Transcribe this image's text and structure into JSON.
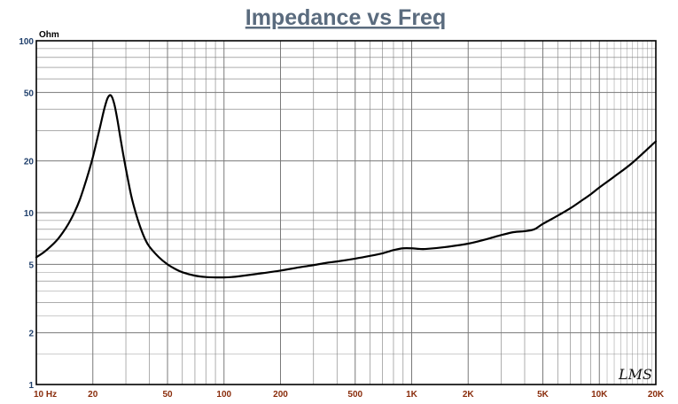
{
  "chart_data": {
    "type": "line",
    "title": "Impedance vs Freq",
    "ylabel": "Ohm",
    "xscale": "log",
    "yscale": "log",
    "xlim": [
      10,
      20000
    ],
    "ylim": [
      1,
      100
    ],
    "grid": true,
    "x_tick_labels": [
      {
        "value": 10,
        "label": "10  Hz"
      },
      {
        "value": 20,
        "label": "20"
      },
      {
        "value": 50,
        "label": "50"
      },
      {
        "value": 100,
        "label": "100"
      },
      {
        "value": 200,
        "label": "200"
      },
      {
        "value": 500,
        "label": "500"
      },
      {
        "value": 1000,
        "label": "1K"
      },
      {
        "value": 2000,
        "label": "2K"
      },
      {
        "value": 5000,
        "label": "5K"
      },
      {
        "value": 10000,
        "label": "10K"
      },
      {
        "value": 20000,
        "label": "20K"
      }
    ],
    "y_tick_labels": [
      {
        "value": 100,
        "label": "100"
      },
      {
        "value": 50,
        "label": "50"
      },
      {
        "value": 20,
        "label": "20"
      },
      {
        "value": 10,
        "label": "10"
      },
      {
        "value": 5,
        "label": "5"
      },
      {
        "value": 2,
        "label": "2"
      },
      {
        "value": 1,
        "label": "1"
      }
    ],
    "series": [
      {
        "color": "#000000",
        "x": [
          10,
          11,
          12,
          13,
          14,
          15,
          16,
          17,
          18,
          19,
          20,
          21,
          22,
          23,
          24,
          25,
          26,
          27,
          28,
          29,
          30,
          32,
          34,
          36,
          38,
          40,
          45,
          50,
          55,
          60,
          70,
          80,
          90,
          100,
          110,
          120,
          150,
          200,
          250,
          300,
          350,
          400,
          500,
          600,
          700,
          800,
          900,
          1000,
          1100,
          1200,
          1500,
          2000,
          2500,
          3000,
          3500,
          4000,
          4500,
          5000,
          6000,
          7000,
          8000,
          9000,
          10000,
          12000,
          15000,
          20000
        ],
        "y": [
          5.5,
          5.9,
          6.4,
          7.0,
          7.8,
          8.8,
          10.1,
          11.8,
          14.2,
          17.2,
          21.0,
          26.2,
          32.5,
          40.0,
          46.5,
          48.0,
          43.0,
          35.0,
          27.5,
          22.0,
          18.0,
          12.6,
          9.8,
          8.1,
          7.0,
          6.35,
          5.5,
          5.0,
          4.7,
          4.5,
          4.3,
          4.22,
          4.2,
          4.2,
          4.22,
          4.26,
          4.4,
          4.6,
          4.8,
          4.95,
          5.1,
          5.2,
          5.4,
          5.6,
          5.8,
          6.05,
          6.2,
          6.2,
          6.15,
          6.15,
          6.3,
          6.6,
          7.0,
          7.4,
          7.7,
          7.8,
          8.0,
          8.6,
          9.6,
          10.6,
          11.7,
          12.8,
          14.0,
          16.2,
          19.5,
          26.0
        ]
      }
    ]
  },
  "watermark": "LMS",
  "colors": {
    "background": "#ffffff",
    "grid": "#7a7a7a",
    "curve": "#000000",
    "frame": "#000000",
    "title": "#5a6b7e",
    "x_tick_label": "#8a2d0c",
    "y_tick_label": "#1f3f6b"
  }
}
